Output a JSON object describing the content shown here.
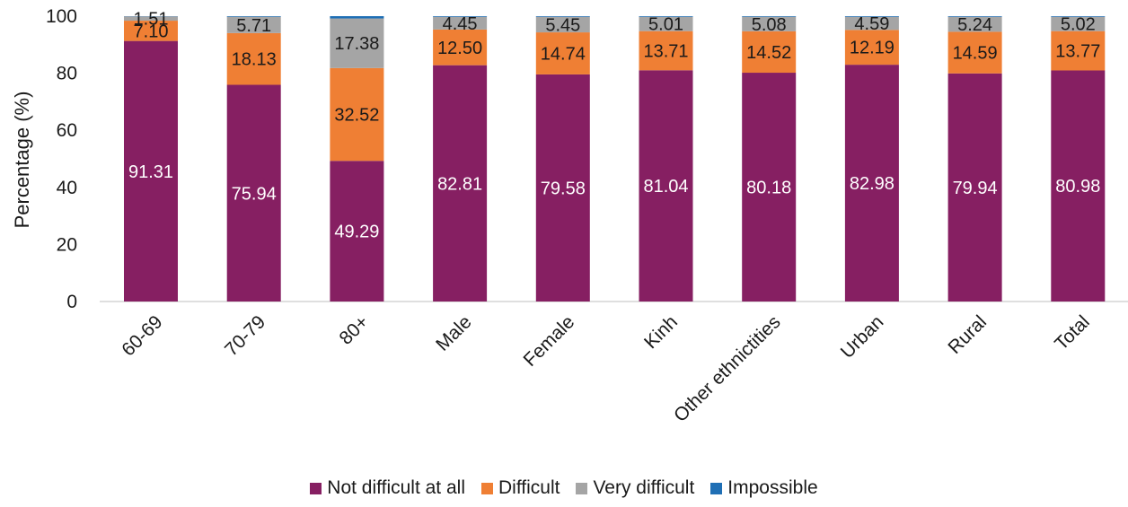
{
  "chart_data": {
    "type": "bar",
    "stacked": true,
    "ylabel": "Percentage (%)",
    "ylim": [
      0,
      100
    ],
    "yticks": [
      0,
      20,
      40,
      60,
      80,
      100
    ],
    "grid": false,
    "legend_position": "bottom",
    "categories": [
      "60-69",
      "70-79",
      "80+",
      "Male",
      "Female",
      "Kinh",
      "Other ethnictities",
      "Urban",
      "Rural",
      "Total"
    ],
    "series": [
      {
        "name": "Not difficult at all",
        "color": "#861f62",
        "values": [
          91.31,
          75.94,
          49.29,
          82.81,
          79.58,
          81.04,
          80.18,
          82.98,
          79.94,
          80.98
        ],
        "labels": [
          "91.31",
          "75.94",
          "49.29",
          "82.81",
          "79.58",
          "81.04",
          "80.18",
          "82.98",
          "79.94",
          "80.98"
        ]
      },
      {
        "name": "Difficult",
        "color": "#ef7f34",
        "values": [
          7.1,
          18.13,
          32.52,
          12.5,
          14.74,
          13.71,
          14.52,
          12.19,
          14.59,
          13.77
        ],
        "labels": [
          "7.10",
          "18.13",
          "32.52",
          "12.50",
          "14.74",
          "13.71",
          "14.52",
          "12.19",
          "14.59",
          "13.77"
        ]
      },
      {
        "name": "Very difficult",
        "color": "#a5a5a5",
        "values": [
          1.51,
          5.71,
          17.38,
          4.45,
          5.45,
          5.01,
          5.08,
          4.59,
          5.24,
          5.02
        ],
        "labels": [
          "1.51",
          "5.71",
          "17.38",
          "4.45",
          "5.45",
          "5.01",
          "5.08",
          "4.59",
          "5.24",
          "5.02"
        ]
      },
      {
        "name": "Impossible",
        "color": "#1f6fb5",
        "values": [
          0.08,
          0.22,
          0.81,
          0.24,
          0.23,
          0.24,
          0.22,
          0.24,
          0.23,
          0.23
        ],
        "labels": [
          "",
          "",
          "",
          "",
          "",
          "",
          "",
          "",
          "",
          ""
        ]
      }
    ]
  }
}
